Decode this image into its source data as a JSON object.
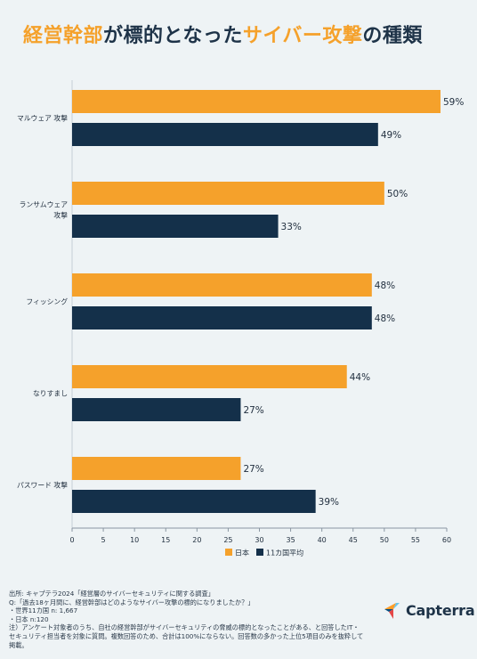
{
  "title": {
    "part1": "経営幹部",
    "part2": "が標的となった",
    "part3": "サイバー攻撃",
    "part4": "の種類"
  },
  "colors": {
    "orange": "#f5a12b",
    "navy": "#14304a",
    "background": "#eef3f5"
  },
  "chart_data": {
    "type": "bar",
    "orientation": "horizontal",
    "categories": [
      "マルウェア 攻撃",
      "ランサムウェア\n攻撃",
      "フィッシング",
      "なりすまし",
      "パスワード 攻撃"
    ],
    "series": [
      {
        "name": "日本",
        "color": "#f5a12b",
        "values": [
          59,
          50,
          48,
          44,
          27
        ]
      },
      {
        "name": "11カ国平均",
        "color": "#14304a",
        "values": [
          49,
          33,
          48,
          27,
          39
        ]
      }
    ],
    "value_suffix": "%",
    "xlim": [
      0,
      60
    ],
    "xticks": [
      0,
      5,
      10,
      15,
      20,
      25,
      30,
      35,
      40,
      45,
      50,
      55,
      60
    ],
    "legend_position": "bottom",
    "grid": false
  },
  "footer": {
    "line1": "出所: キャプテラ2024「経営層のサイバーセキュリティに関する調査」",
    "line2": "Q:「過去18ヶ月間に、経営幹部はどのようなサイバー攻撃の標的になりましたか？」",
    "line3": "・世界11カ国 n: 1,667",
    "line4": "・日本 n:120",
    "line5": "注）アンケート対象者のうち、自社の経営幹部がサイバーセキュリティの脅威の標的となったことがある、と回答したIT・セキュリティ担当者を対象に質問。複数回答のため、合計は100%にならない。回答数の多かった上位5項目のみを抜粋して掲載。"
  },
  "logo": {
    "text": "Capterra",
    "icon": "capterra-arrow-icon"
  }
}
